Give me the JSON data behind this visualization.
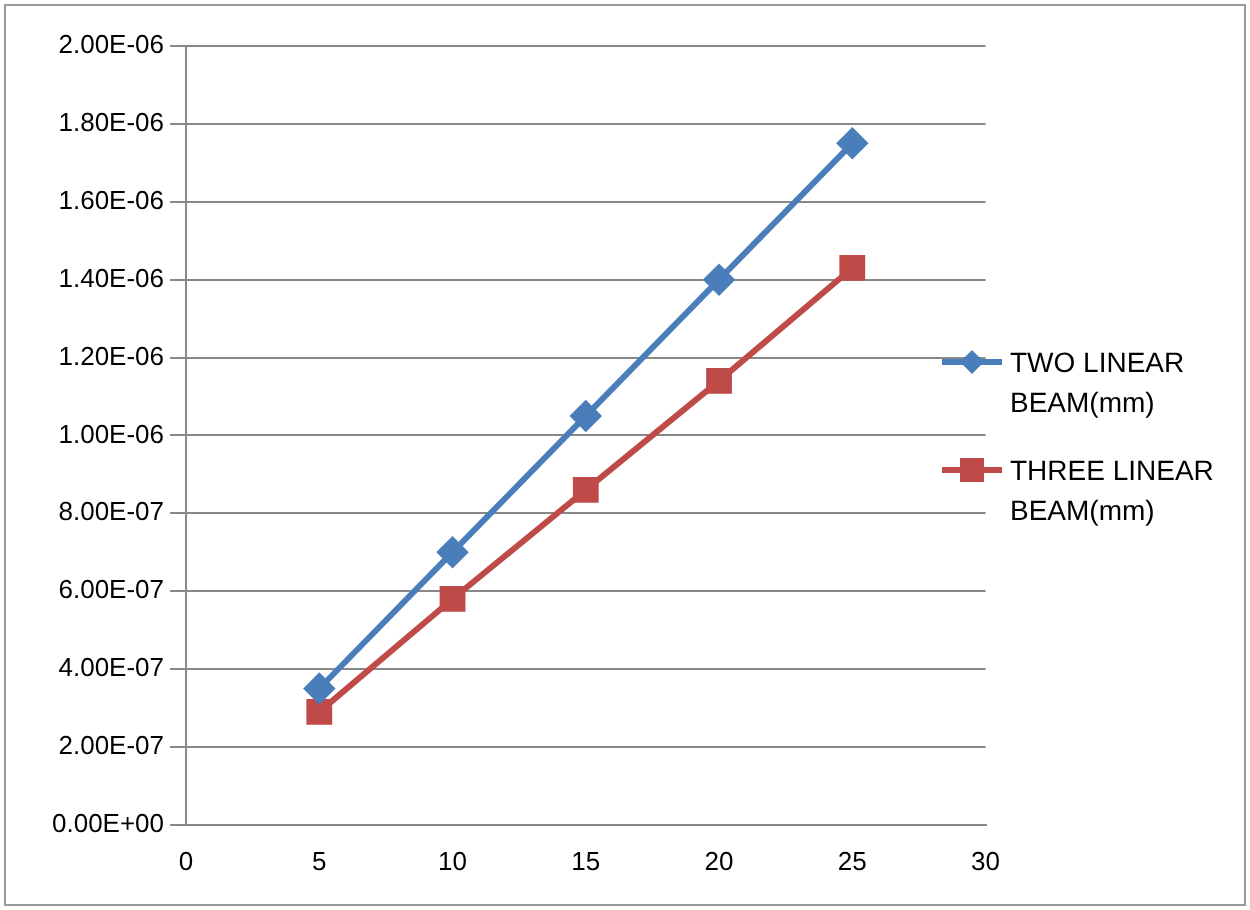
{
  "chart_data": {
    "type": "line",
    "x": [
      5,
      10,
      15,
      20,
      25
    ],
    "series": [
      {
        "name": "TWO LINEAR BEAM(mm)",
        "color": "#4a7ebb",
        "marker": "diamond",
        "values": [
          3.5e-07,
          7e-07,
          1.05e-06,
          1.4e-06,
          1.75e-06
        ]
      },
      {
        "name": "THREE LINEAR BEAM(mm)",
        "color": "#be4b48",
        "marker": "square",
        "values": [
          2.9e-07,
          5.8e-07,
          8.6e-07,
          1.14e-06,
          1.43e-06
        ]
      }
    ],
    "xlim": [
      0,
      30
    ],
    "xticks": [
      0,
      5,
      10,
      15,
      20,
      25,
      30
    ],
    "ylim": [
      0,
      2e-06
    ],
    "yticks": [
      {
        "value": 0,
        "label": "0.00E+00"
      },
      {
        "value": 2e-07,
        "label": "2.00E-07"
      },
      {
        "value": 4e-07,
        "label": "4.00E-07"
      },
      {
        "value": 6e-07,
        "label": "6.00E-07"
      },
      {
        "value": 8e-07,
        "label": "8.00E-07"
      },
      {
        "value": 1e-06,
        "label": "1.00E-06"
      },
      {
        "value": 1.2e-06,
        "label": "1.20E-06"
      },
      {
        "value": 1.4e-06,
        "label": "1.40E-06"
      },
      {
        "value": 1.6e-06,
        "label": "1.60E-06"
      },
      {
        "value": 1.8e-06,
        "label": "1.80E-06"
      },
      {
        "value": 2e-06,
        "label": "2.00E-06"
      }
    ],
    "grid": "y",
    "legend": "right",
    "line_style": "solid"
  }
}
